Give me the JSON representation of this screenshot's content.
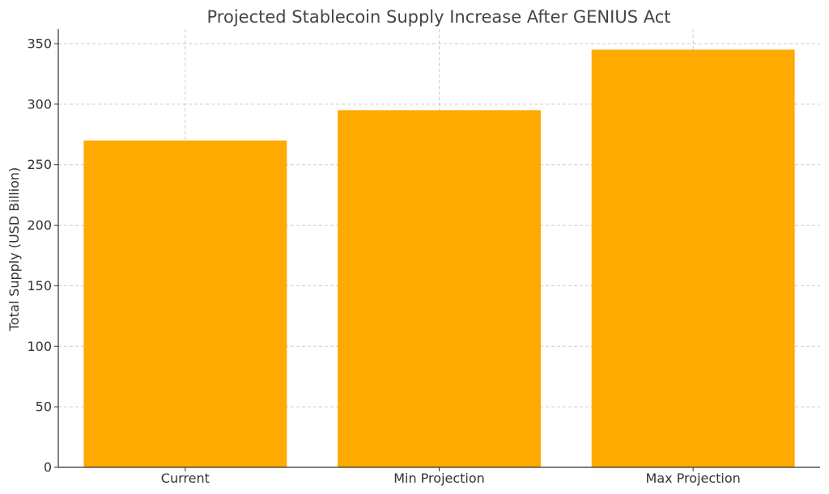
{
  "chart_data": {
    "type": "bar",
    "title": "Projected Stablecoin Supply Increase After GENIUS Act",
    "xlabel": "",
    "ylabel": "Total Supply (USD Billion)",
    "categories": [
      "Current",
      "Min Projection",
      "Max Projection"
    ],
    "values": [
      270,
      295,
      345
    ],
    "ylim": [
      0,
      362
    ],
    "yticks": [
      0,
      50,
      100,
      150,
      200,
      250,
      300,
      350
    ],
    "bar_color": "#FFAA00",
    "grid": true
  }
}
